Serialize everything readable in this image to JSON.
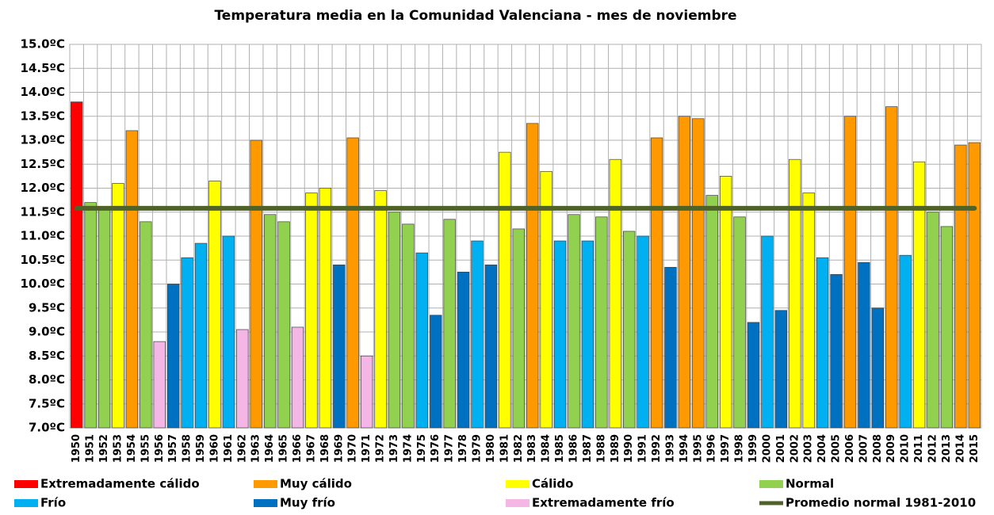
{
  "chart_data": {
    "type": "bar",
    "title": "Temperatura media en la Comunidad Valenciana - mes de noviembre",
    "categories": [
      "1950",
      "1951",
      "1952",
      "1953",
      "1954",
      "1955",
      "1956",
      "1957",
      "1958",
      "1959",
      "1960",
      "1961",
      "1962",
      "1963",
      "1964",
      "1965",
      "1966",
      "1967",
      "1968",
      "1969",
      "1970",
      "1971",
      "1972",
      "1973",
      "1974",
      "1975",
      "1976",
      "1977",
      "1978",
      "1979",
      "1980",
      "1981",
      "1982",
      "1983",
      "1984",
      "1985",
      "1986",
      "1987",
      "1988",
      "1989",
      "1990",
      "1991",
      "1992",
      "1993",
      "1994",
      "1995",
      "1996",
      "1997",
      "1998",
      "1999",
      "2000",
      "2001",
      "2002",
      "2003",
      "2004",
      "2005",
      "2006",
      "2007",
      "2008",
      "2009",
      "2010",
      "2011",
      "2012",
      "2013",
      "2014",
      "2015"
    ],
    "series": [
      {
        "name": "Extremadamente cálido",
        "color": "#ff0000",
        "values": [
          13.8,
          null,
          null,
          null,
          null,
          null,
          null,
          null,
          null,
          null,
          null,
          null,
          null,
          null,
          null,
          null,
          null,
          null,
          null,
          null,
          null,
          null,
          null,
          null,
          null,
          null,
          null,
          null,
          null,
          null,
          null,
          null,
          null,
          null,
          null,
          null,
          null,
          null,
          null,
          null,
          null,
          null,
          null,
          null,
          null,
          null,
          null,
          null,
          null,
          null,
          null,
          null,
          null,
          null,
          null,
          null,
          null,
          null,
          null,
          null,
          null,
          null,
          null,
          null,
          null,
          null
        ]
      },
      {
        "name": "Muy cálido",
        "color": "#ff9900",
        "values": [
          null,
          null,
          null,
          null,
          13.2,
          null,
          null,
          null,
          null,
          null,
          null,
          null,
          null,
          13.0,
          null,
          null,
          null,
          null,
          null,
          null,
          13.05,
          null,
          null,
          null,
          null,
          null,
          null,
          null,
          null,
          null,
          null,
          null,
          null,
          13.35,
          null,
          null,
          null,
          null,
          null,
          null,
          null,
          null,
          13.05,
          null,
          13.5,
          13.45,
          null,
          null,
          null,
          null,
          null,
          null,
          null,
          null,
          null,
          null,
          13.5,
          null,
          null,
          13.7,
          null,
          null,
          null,
          null,
          12.9,
          12.95
        ]
      },
      {
        "name": "Cálido",
        "color": "#ffff00",
        "values": [
          null,
          null,
          null,
          12.1,
          null,
          null,
          null,
          null,
          null,
          null,
          12.15,
          null,
          null,
          null,
          null,
          null,
          null,
          11.9,
          12.0,
          null,
          null,
          null,
          11.95,
          null,
          null,
          null,
          null,
          null,
          null,
          null,
          null,
          12.75,
          null,
          null,
          12.35,
          null,
          null,
          null,
          null,
          12.6,
          null,
          null,
          null,
          null,
          null,
          null,
          null,
          12.25,
          null,
          null,
          null,
          null,
          12.6,
          11.9,
          null,
          null,
          null,
          null,
          null,
          null,
          null,
          12.55,
          null,
          null,
          null,
          null
        ]
      },
      {
        "name": "Normal",
        "color": "#92d050",
        "values": [
          null,
          11.7,
          11.6,
          null,
          null,
          11.3,
          null,
          null,
          null,
          null,
          null,
          null,
          null,
          null,
          11.45,
          11.3,
          null,
          null,
          null,
          null,
          null,
          null,
          null,
          11.5,
          11.25,
          null,
          null,
          11.35,
          null,
          null,
          null,
          null,
          11.15,
          null,
          null,
          null,
          11.45,
          null,
          11.4,
          null,
          11.1,
          null,
          null,
          null,
          null,
          null,
          11.85,
          null,
          11.4,
          null,
          null,
          null,
          null,
          null,
          null,
          null,
          null,
          null,
          null,
          null,
          null,
          null,
          11.5,
          11.2,
          null,
          null
        ]
      },
      {
        "name": "Frío",
        "color": "#00b0f0",
        "values": [
          null,
          null,
          null,
          null,
          null,
          null,
          null,
          null,
          10.55,
          10.85,
          null,
          11.0,
          null,
          null,
          null,
          null,
          null,
          null,
          null,
          null,
          null,
          null,
          null,
          null,
          null,
          10.65,
          null,
          null,
          null,
          10.9,
          null,
          null,
          null,
          null,
          null,
          10.9,
          null,
          10.9,
          null,
          null,
          null,
          11.0,
          null,
          null,
          null,
          null,
          null,
          null,
          null,
          null,
          11.0,
          null,
          null,
          null,
          10.55,
          null,
          null,
          null,
          null,
          null,
          10.6,
          null,
          null,
          null,
          null,
          null
        ]
      },
      {
        "name": "Muy frío",
        "color": "#0070c0",
        "values": [
          null,
          null,
          null,
          null,
          null,
          null,
          null,
          10.0,
          null,
          null,
          null,
          null,
          null,
          null,
          null,
          null,
          null,
          null,
          null,
          10.4,
          null,
          null,
          null,
          null,
          null,
          null,
          9.35,
          null,
          10.25,
          null,
          10.4,
          null,
          null,
          null,
          null,
          null,
          null,
          null,
          null,
          null,
          null,
          null,
          null,
          10.35,
          null,
          null,
          null,
          null,
          null,
          9.2,
          null,
          9.45,
          null,
          null,
          null,
          10.2,
          null,
          10.45,
          9.5,
          null,
          null,
          null,
          null,
          null,
          null,
          null
        ]
      },
      {
        "name": "Extremadamente frío",
        "color": "#f4b6e4",
        "values": [
          null,
          null,
          null,
          null,
          null,
          null,
          8.8,
          null,
          null,
          null,
          null,
          null,
          9.05,
          null,
          null,
          null,
          9.1,
          null,
          null,
          null,
          null,
          8.5,
          null,
          null,
          null,
          null,
          null,
          null,
          null,
          null,
          null,
          null,
          null,
          null,
          null,
          null,
          null,
          null,
          null,
          null,
          null,
          null,
          null,
          null,
          null,
          null,
          null,
          null,
          null,
          null,
          null,
          null,
          null,
          null,
          null,
          null,
          null,
          null,
          null,
          null,
          null,
          null,
          null,
          null,
          null,
          null
        ]
      }
    ],
    "reference_line": {
      "name": "Promedio normal 1981-2010",
      "value": 11.58,
      "color": "#4f6228"
    },
    "ylim": [
      7.0,
      15.0
    ],
    "yticks": [
      {
        "value": 7.0,
        "label": "7.0ºC"
      },
      {
        "value": 7.5,
        "label": "7.5ºC"
      },
      {
        "value": 8.0,
        "label": "8.0ºC"
      },
      {
        "value": 8.5,
        "label": "8.5ºC"
      },
      {
        "value": 9.0,
        "label": "9.0ºC"
      },
      {
        "value": 9.5,
        "label": "9.5ºC"
      },
      {
        "value": 10.0,
        "label": "10.0ºC"
      },
      {
        "value": 10.5,
        "label": "10.5ºC"
      },
      {
        "value": 11.0,
        "label": "11.0ºC"
      },
      {
        "value": 11.5,
        "label": "11.5ºC"
      },
      {
        "value": 12.0,
        "label": "12.0ºC"
      },
      {
        "value": 12.5,
        "label": "12.5ºC"
      },
      {
        "value": 13.0,
        "label": "13.0ºC"
      },
      {
        "value": 13.5,
        "label": "13.5ºC"
      },
      {
        "value": 14.0,
        "label": "14.0ºC"
      },
      {
        "value": 14.5,
        "label": "14.5ºC"
      },
      {
        "value": 15.0,
        "label": "15.0ºC"
      }
    ],
    "grid": true
  }
}
